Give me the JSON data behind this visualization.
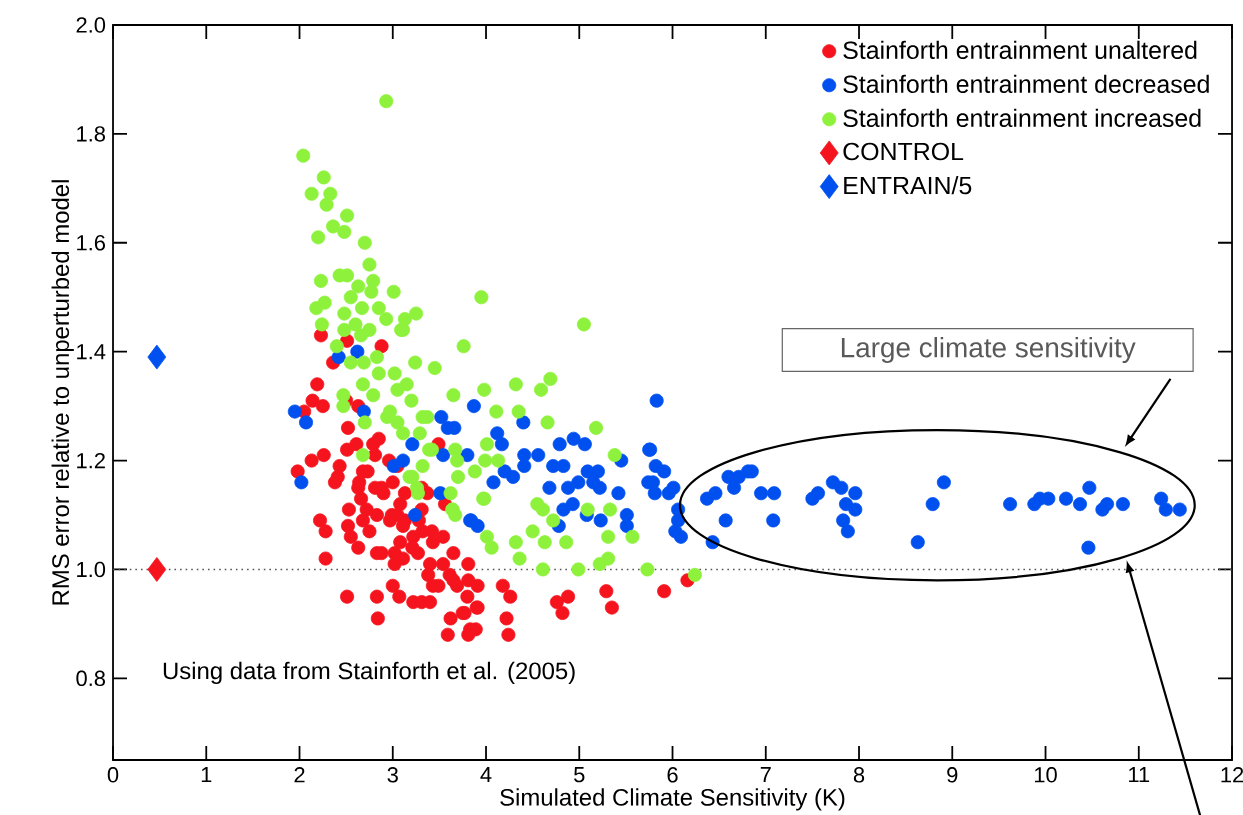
{
  "chart_data": {
    "type": "scatter",
    "xlabel": "Simulated Climate Sensitivity (K)",
    "ylabel": "RMS error relative to unperturbed model",
    "xlim": [
      0,
      12
    ],
    "ylim": [
      0.65,
      2.0
    ],
    "xticks": [
      0,
      1,
      2,
      3,
      4,
      5,
      6,
      7,
      8,
      9,
      10,
      11,
      12
    ],
    "yticks": [
      {
        "value": 0.8,
        "label": "0.8"
      },
      {
        "value": 1.0,
        "label": "1.0"
      },
      {
        "value": 1.2,
        "label": "1.2"
      },
      {
        "value": 1.4,
        "label": "1.4"
      },
      {
        "value": 1.6,
        "label": "1.6"
      },
      {
        "value": 1.8,
        "label": "1.8"
      },
      {
        "value": 2.0,
        "label": "2.0"
      }
    ],
    "legend": "top right",
    "ref_lines": [
      {
        "axis": "y",
        "value": 1.0,
        "line_style": "dotted",
        "color": "#555555"
      }
    ],
    "annotations": [
      "Large climate sensitivity",
      "Using data from Stainforth et al. (2005)"
    ],
    "series": [
      {
        "name": "Stainforth entrainment unaltered",
        "color": "#f5141e",
        "marker": "circle",
        "x": [
          2.23,
          2.51,
          2.88,
          2.36,
          2.19,
          2.14,
          2.25,
          2.05,
          2.5,
          2.63,
          2.52,
          2.13,
          2.26,
          1.98,
          2.61,
          2.51,
          2.79,
          2.85,
          2.81,
          2.96,
          3.49,
          2.43,
          2.41,
          2.38,
          2.68,
          2.73,
          2.64,
          2.63,
          2.81,
          2.88,
          3.0,
          3.05,
          2.9,
          3.13,
          3.31,
          3.37,
          3.56,
          2.66,
          2.53,
          2.72,
          2.83,
          2.68,
          2.99,
          3.08,
          3.05,
          2.97,
          3.13,
          3.31,
          3.28,
          2.22,
          2.28,
          2.52,
          2.55,
          2.75,
          3.11,
          3.22,
          3.32,
          3.42,
          3.43,
          3.54,
          2.63,
          2.83,
          2.88,
          3.02,
          3.08,
          3.21,
          3.27,
          3.11,
          3.02,
          3.4,
          3.38,
          3.54,
          3.65,
          3.61,
          3.81,
          3.43,
          3.49,
          3.65,
          3.69,
          3.81,
          3.8,
          3.91,
          2.28,
          2.51,
          2.83,
          3.0,
          3.07,
          3.22,
          3.31,
          3.4,
          2.84,
          3.62,
          3.75,
          3.91,
          3.59,
          3.83,
          3.81,
          3.89,
          4.18,
          4.26,
          4.76,
          4.82,
          4.88,
          3.9,
          5.29,
          5.35,
          5.91,
          6.16,
          3.77,
          4.24,
          4.22
        ],
        "values": [
          1.43,
          1.42,
          1.41,
          1.38,
          1.34,
          1.31,
          1.3,
          1.29,
          1.31,
          1.3,
          1.26,
          1.2,
          1.21,
          1.18,
          1.23,
          1.22,
          1.23,
          1.24,
          1.21,
          1.2,
          1.23,
          1.19,
          1.17,
          1.16,
          1.18,
          1.18,
          1.16,
          1.15,
          1.15,
          1.15,
          1.16,
          1.19,
          1.14,
          1.14,
          1.15,
          1.14,
          1.12,
          1.13,
          1.11,
          1.11,
          1.1,
          1.09,
          1.1,
          1.12,
          1.1,
          1.09,
          1.09,
          1.11,
          1.09,
          1.09,
          1.07,
          1.08,
          1.06,
          1.07,
          1.08,
          1.06,
          1.07,
          1.07,
          1.05,
          1.06,
          1.04,
          1.03,
          1.03,
          1.03,
          1.05,
          1.04,
          1.03,
          1.02,
          1.01,
          1.01,
          0.99,
          1.01,
          1.03,
          0.99,
          1.01,
          0.97,
          0.97,
          0.98,
          0.97,
          0.98,
          0.95,
          0.97,
          1.02,
          0.95,
          0.95,
          0.97,
          0.95,
          0.94,
          0.94,
          0.94,
          0.91,
          0.91,
          0.92,
          0.93,
          0.88,
          0.89,
          0.88,
          0.89,
          0.97,
          0.95,
          0.94,
          0.92,
          0.95,
          0.93,
          0.96,
          0.93,
          0.96,
          0.98,
          0.92,
          0.88,
          0.91
        ]
      },
      {
        "name": "Stainforth entrainment decreased",
        "color": "#0050f0",
        "marker": "circle",
        "x": [
          6.37,
          6.46,
          6.6,
          6.71,
          6.66,
          6.81,
          6.85,
          6.57,
          6.43,
          6.95,
          7.09,
          7.08,
          7.5,
          7.56,
          7.72,
          7.81,
          7.96,
          7.86,
          7.96,
          7.83,
          7.88,
          8.91,
          8.79,
          8.63,
          9.62,
          9.88,
          9.94,
          10.03,
          10.22,
          10.37,
          10.47,
          10.46,
          10.61,
          10.66,
          10.83,
          11.24,
          11.29,
          11.44,
          5.83,
          5.76,
          5.82,
          5.91,
          5.74,
          5.79,
          6.01,
          5.81,
          5.96,
          6.06,
          6.06,
          6.03,
          6.09,
          3.87,
          3.52,
          3.59,
          3.66,
          3.21,
          4.4,
          4.12,
          4.17,
          4.41,
          4.41,
          4.56,
          4.79,
          4.94,
          5.06,
          4.72,
          4.83,
          4.2,
          4.29,
          4.08,
          4.68,
          4.88,
          4.99,
          5.09,
          5.2,
          5.15,
          5.22,
          5.42,
          5.45,
          5.75,
          4.83,
          4.93,
          5.08,
          5.23,
          5.51,
          5.51,
          4.78,
          3.83,
          3.91,
          3.54,
          3.8,
          3.51,
          3.24,
          3.11,
          3.01,
          1.95,
          2.07,
          2.02,
          2.69,
          3.84,
          2.62,
          2.42
        ],
        "values": [
          1.13,
          1.14,
          1.17,
          1.17,
          1.15,
          1.18,
          1.18,
          1.09,
          1.05,
          1.14,
          1.14,
          1.09,
          1.13,
          1.14,
          1.16,
          1.15,
          1.14,
          1.12,
          1.11,
          1.09,
          1.07,
          1.16,
          1.12,
          1.05,
          1.12,
          1.12,
          1.13,
          1.13,
          1.13,
          1.12,
          1.15,
          1.04,
          1.11,
          1.12,
          1.12,
          1.13,
          1.11,
          1.11,
          1.31,
          1.22,
          1.19,
          1.18,
          1.16,
          1.16,
          1.15,
          1.14,
          1.14,
          1.11,
          1.09,
          1.07,
          1.06,
          1.3,
          1.28,
          1.26,
          1.26,
          1.23,
          1.27,
          1.25,
          1.23,
          1.21,
          1.19,
          1.21,
          1.23,
          1.24,
          1.23,
          1.19,
          1.19,
          1.18,
          1.17,
          1.16,
          1.15,
          1.15,
          1.16,
          1.18,
          1.18,
          1.16,
          1.15,
          1.14,
          1.2,
          1.22,
          1.11,
          1.12,
          1.1,
          1.09,
          1.1,
          1.08,
          1.08,
          1.09,
          1.08,
          1.21,
          1.21,
          1.14,
          1.1,
          1.2,
          1.19,
          1.29,
          1.27,
          1.16,
          1.29,
          1.09,
          1.4,
          1.39
        ]
      },
      {
        "name": "Stainforth entrainment increased",
        "color": "#8ef23c",
        "marker": "circle",
        "x": [
          2.93,
          2.04,
          2.26,
          2.13,
          2.33,
          2.29,
          2.51,
          2.36,
          2.48,
          2.2,
          2.7,
          2.75,
          2.43,
          2.51,
          2.23,
          2.79,
          2.63,
          2.77,
          3.01,
          2.55,
          2.27,
          3.95,
          2.18,
          2.67,
          2.85,
          2.48,
          3.25,
          3.13,
          2.93,
          2.6,
          2.75,
          3.11,
          2.48,
          2.66,
          2.24,
          3.76,
          2.4,
          2.83,
          3.24,
          3.45,
          2.69,
          2.55,
          2.85,
          3.02,
          3.15,
          2.68,
          5.05,
          4.32,
          4.69,
          4.59,
          3.98,
          3.65,
          4.11,
          4.35,
          4.66,
          5.18,
          4.01,
          4.13,
          3.67,
          3.88,
          3.98,
          4.55,
          4.61,
          5.09,
          5.33,
          5.38,
          4.72,
          4.5,
          4.32,
          4.63,
          4.86,
          4.06,
          4.01,
          4.36,
          5.57,
          5.31,
          5.31,
          5.22,
          4.61,
          4.99,
          5.73,
          6.24,
          3.67,
          3.64,
          3.39,
          3.32,
          3.2,
          3.09,
          3.69,
          3.7,
          3.62,
          3.26,
          3.21,
          2.94,
          2.47,
          2.79,
          3.05,
          2.47,
          2.97,
          3.05,
          3.37,
          2.7,
          2.68,
          3.11,
          3.29,
          3.42,
          3.18,
          3.32,
          3.27,
          3.64,
          3.97,
          3.99
        ],
        "values": [
          1.86,
          1.76,
          1.72,
          1.69,
          1.69,
          1.67,
          1.65,
          1.63,
          1.62,
          1.61,
          1.6,
          1.56,
          1.54,
          1.54,
          1.53,
          1.53,
          1.52,
          1.51,
          1.51,
          1.5,
          1.49,
          1.5,
          1.48,
          1.48,
          1.48,
          1.47,
          1.47,
          1.46,
          1.46,
          1.45,
          1.44,
          1.44,
          1.44,
          1.43,
          1.45,
          1.41,
          1.41,
          1.39,
          1.38,
          1.37,
          1.38,
          1.38,
          1.36,
          1.36,
          1.34,
          1.34,
          1.45,
          1.34,
          1.35,
          1.33,
          1.33,
          1.32,
          1.29,
          1.29,
          1.27,
          1.26,
          1.23,
          1.2,
          1.22,
          1.18,
          1.13,
          1.12,
          1.11,
          1.11,
          1.11,
          1.21,
          1.09,
          1.07,
          1.05,
          1.05,
          1.05,
          1.04,
          1.06,
          1.02,
          1.06,
          1.06,
          1.02,
          1.01,
          1.0,
          1.0,
          1.0,
          0.99,
          1.1,
          1.11,
          1.22,
          1.28,
          1.31,
          1.44,
          1.2,
          1.17,
          1.14,
          1.15,
          1.17,
          1.28,
          1.32,
          1.32,
          1.33,
          1.3,
          1.29,
          1.27,
          1.28,
          1.27,
          1.21,
          1.25,
          1.25,
          1.22,
          1.17,
          1.19,
          1.14,
          1.11,
          1.13,
          1.2
        ]
      },
      {
        "name": "CONTROL",
        "color": "#f5141e",
        "marker": "diamond",
        "x": [
          0.47
        ],
        "values": [
          1.0
        ]
      },
      {
        "name": "ENTRAIN/5",
        "color": "#0050f0",
        "marker": "diamond",
        "x": [
          0.47
        ],
        "values": [
          1.39
        ]
      }
    ]
  }
}
